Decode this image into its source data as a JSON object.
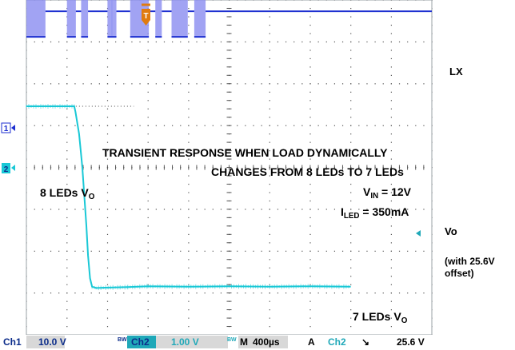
{
  "colors": {
    "ch1": "#8a8cf0",
    "ch1_line": "#1d2fd0",
    "ch2": "#19c8d6",
    "grid": "#555555",
    "trigger": "#e07b10",
    "readout_bg": "#d8d8d8"
  },
  "right_labels": {
    "lx": "LX",
    "vo": "Vo",
    "offset_line1": "(with 25.6V",
    "offset_line2": "offset)"
  },
  "annotations": {
    "title_line1": "TRANSIENT RESPONSE WHEN LOAD DYNAMICALLY",
    "title_line2": "CHANGES FROM 8 LEDs TO 7 LEDs",
    "vin_main": "V",
    "vin_sub": "IN",
    "vin_rest": " = 12V",
    "iled_main": "I",
    "iled_sub": "LED",
    "iled_rest": " = 350mA",
    "led8_main": "8 LEDs V",
    "led8_sub": "O",
    "led7_main": "7 LEDs V",
    "led7_sub": "O"
  },
  "markers": {
    "ch1": "1",
    "ch2": "2",
    "trigger": "T"
  },
  "readout": {
    "ch1_label": "Ch1",
    "ch1_scale": "10.0 V",
    "ch2_label": "Ch2",
    "ch2_scale": "1.00 V",
    "time_label": "M",
    "time_scale": "400µs",
    "acq": "A",
    "trig_src": "Ch2",
    "trig_slope": "↘",
    "trig_level": "25.6 V",
    "bw": "BW"
  },
  "chart_data": {
    "type": "line",
    "title": "TRANSIENT RESPONSE WHEN LOAD DYNAMICALLY CHANGES FROM 8 LEDs TO 7 LEDs",
    "x_divisions": 10,
    "y_divisions": 8,
    "time_per_div_us": 400,
    "series": [
      {
        "name": "LX",
        "channel": "Ch1",
        "volts_per_div": 10,
        "low_level_div": 7.12,
        "idle_level_div": 7.73,
        "high_level_div": 8.0,
        "switching_bursts_div": [
          [
            0,
            0.47
          ],
          [
            1.0,
            1.22
          ],
          [
            1.35,
            1.52
          ],
          [
            2.0,
            2.12
          ],
          [
            2.1,
            2.22
          ],
          [
            2.56,
            3.02
          ],
          [
            3.18,
            3.34
          ],
          [
            3.58,
            3.98
          ],
          [
            4.14,
            4.42
          ]
        ]
      },
      {
        "name": "Vo",
        "channel": "Ch2",
        "volts_per_div": 1,
        "offset_V": 25.6,
        "points_div": [
          [
            0,
            5.46
          ],
          [
            1.18,
            5.46
          ],
          [
            1.21,
            5.33
          ],
          [
            1.3,
            4.8
          ],
          [
            1.38,
            4.0
          ],
          [
            1.43,
            3.3
          ],
          [
            1.48,
            2.6
          ],
          [
            1.52,
            1.9
          ],
          [
            1.57,
            1.35
          ],
          [
            1.62,
            1.15
          ],
          [
            1.72,
            1.12
          ],
          [
            2.5,
            1.14
          ],
          [
            3.0,
            1.16
          ],
          [
            4.0,
            1.15
          ],
          [
            5.0,
            1.16
          ],
          [
            6.0,
            1.15
          ],
          [
            7.0,
            1.16
          ],
          [
            8.0,
            1.15
          ]
        ]
      }
    ]
  }
}
